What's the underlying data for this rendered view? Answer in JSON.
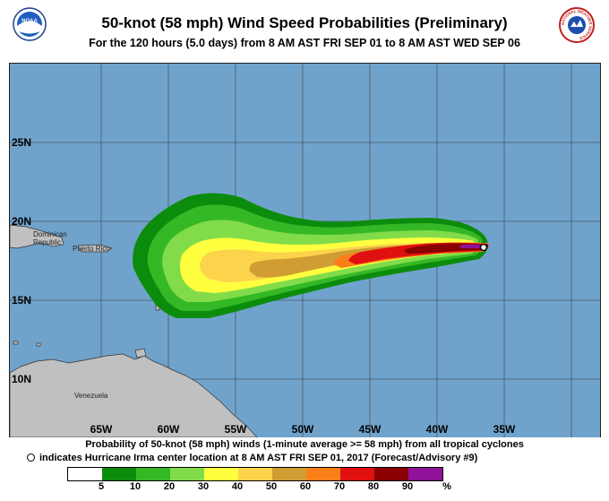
{
  "header": {
    "title": "50-knot (58 mph) Wind Speed Probabilities (Preliminary)",
    "subtitle": "For the 120 hours (5.0 days) from 8 AM AST FRI SEP 01 to 8 AM AST WED SEP 06",
    "left_logo": "noaa-logo",
    "left_logo_text": "NOAA",
    "right_logo": "nws-logo",
    "right_logo_text": "NATIONAL WEATHER SERVICE"
  },
  "map": {
    "ocean_color": "#70a3cc",
    "land_color": "#c0c0c0",
    "lat_labels": [
      "25N",
      "20N",
      "15N",
      "10N"
    ],
    "lon_labels": [
      "65W",
      "60W",
      "55W",
      "50W",
      "45W",
      "40W",
      "35W"
    ],
    "places": [
      "Dominican Republic",
      "Puerto Rico",
      "Venezuela"
    ]
  },
  "footer": {
    "line1": "Probability of 50-knot (58 mph) winds (1-minute average >= 58 mph) from all tropical cyclones",
    "line2": "indicates Hurricane Irma center location at 8 AM AST FRI SEP 01, 2017 (Forecast/Advisory #9)",
    "marker_icon": "storm-center-circle-icon"
  },
  "legend": {
    "colors": [
      "#ffffff",
      "#0c8c0c",
      "#35b826",
      "#82dc4a",
      "#ffff40",
      "#fcd44c",
      "#cf9d33",
      "#fb7f18",
      "#e01010",
      "#8a0000",
      "#8f1299"
    ],
    "labels": [
      "5",
      "10",
      "20",
      "30",
      "40",
      "50",
      "60",
      "70",
      "80",
      "90",
      "%"
    ]
  }
}
